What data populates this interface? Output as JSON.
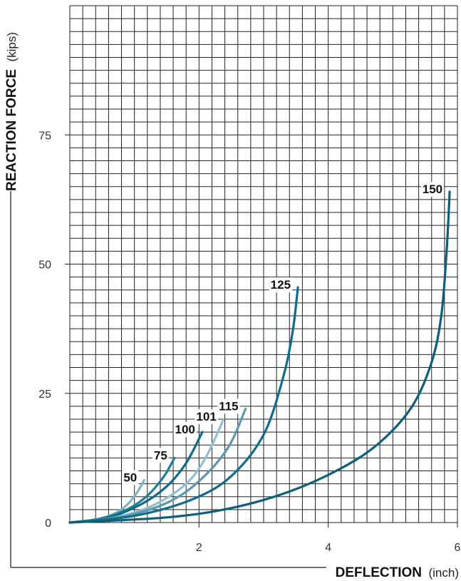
{
  "chart_data": {
    "type": "line",
    "title": "",
    "xlabel": "DEFLECTION",
    "xlabel_unit": "(inch)",
    "ylabel": "REACTION FORCE",
    "ylabel_unit": "(kips)",
    "xlim": [
      0,
      6
    ],
    "ylim": [
      0,
      100
    ],
    "x_ticks": [
      2,
      4,
      6
    ],
    "x_tick_labels": [
      "2",
      "4",
      "6"
    ],
    "y_ticks": [
      0,
      25,
      50,
      75
    ],
    "y_tick_labels": [
      "0",
      "25",
      "50",
      "75"
    ],
    "grid": true,
    "series": [
      {
        "name": "50",
        "label": "50",
        "color": "#7fb3c4",
        "x": [
          0,
          0.4,
          0.7,
          0.9,
          1.05,
          1.15
        ],
        "y": [
          0,
          0.6,
          1.8,
          3.6,
          6.0,
          8.2
        ]
      },
      {
        "name": "75",
        "label": "75",
        "color": "#1f7f99",
        "x": [
          0,
          0.5,
          0.9,
          1.2,
          1.45,
          1.62
        ],
        "y": [
          0,
          0.8,
          2.6,
          5.2,
          8.8,
          12.5
        ]
      },
      {
        "name": "100",
        "label": "100",
        "color": "#0e6a85",
        "x": [
          0,
          0.6,
          1.1,
          1.5,
          1.8,
          2.05
        ],
        "y": [
          0,
          1.0,
          3.5,
          7.0,
          11.5,
          17.5
        ]
      },
      {
        "name": "101",
        "label": "101",
        "color": "#8fbfd0",
        "x": [
          0,
          0.7,
          1.3,
          1.8,
          2.1,
          2.38
        ],
        "y": [
          0,
          1.0,
          3.4,
          7.5,
          12.5,
          20.0
        ]
      },
      {
        "name": "115",
        "label": "115",
        "color": "#5e98ac",
        "x": [
          0,
          0.8,
          1.5,
          2.0,
          2.45,
          2.72
        ],
        "y": [
          0,
          1.1,
          3.8,
          8.0,
          14.5,
          22.0
        ]
      },
      {
        "name": "125",
        "label": "125",
        "color": "#0f6c8a",
        "x": [
          0,
          1.0,
          1.9,
          2.5,
          3.0,
          3.3,
          3.45,
          3.53
        ],
        "y": [
          0,
          1.3,
          4.5,
          9.0,
          17.0,
          28.0,
          37.0,
          45.5
        ]
      },
      {
        "name": "150",
        "label": "150",
        "color": "#0b5f7a",
        "x": [
          0,
          1.5,
          2.5,
          3.4,
          4.2,
          4.8,
          5.3,
          5.6,
          5.75,
          5.83,
          5.88
        ],
        "y": [
          0,
          1.0,
          2.8,
          6.0,
          10.5,
          15.5,
          22.5,
          31.0,
          40.0,
          52.0,
          64.0
        ]
      }
    ]
  }
}
